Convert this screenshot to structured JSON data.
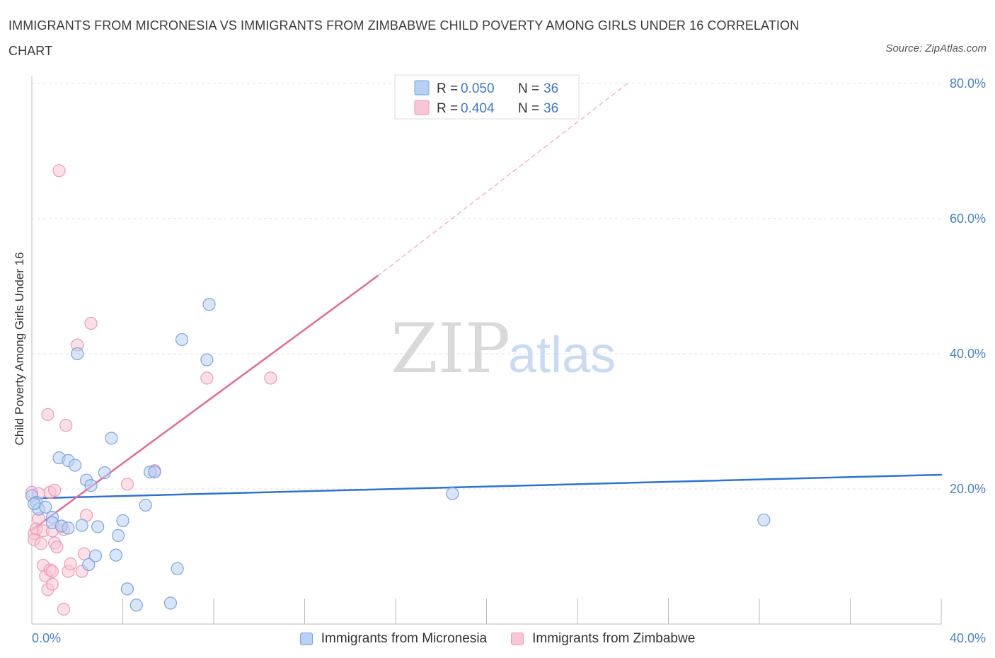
{
  "title": "IMMIGRANTS FROM MICRONESIA VS IMMIGRANTS FROM ZIMBABWE CHILD POVERTY AMONG GIRLS UNDER 16 CORRELATION CHART",
  "source": "Source: ZipAtlas.com",
  "watermark": {
    "zip": "ZIP",
    "atlas": "atlas"
  },
  "colors": {
    "micronesia_fill": "#b8d0f5",
    "micronesia_stroke": "#7aa5e0",
    "micronesia_line": "#2f73cf",
    "zimbabwe_fill": "#f8c6d6",
    "zimbabwe_stroke": "#ee9ab6",
    "zimbabwe_line": "#e56a95",
    "grid": "#e2e2e2",
    "tick_text": "#4a7fc9"
  },
  "legend": {
    "r_label": "R =",
    "n_label": "N =",
    "micronesia": {
      "r": "0.050",
      "n": "36"
    },
    "zimbabwe": {
      "r": "0.404",
      "n": "36"
    }
  },
  "chart_data": {
    "type": "scatter",
    "title": "IMMIGRANTS FROM MICRONESIA VS IMMIGRANTS FROM ZIMBABWE CHILD POVERTY AMONG GIRLS UNDER 16 CORRELATION CHART",
    "xlabel": "",
    "ylabel": "Child Poverty Among Girls Under 16",
    "xlim": [
      0,
      40
    ],
    "ylim": [
      0,
      80
    ],
    "x_tick_labels": [
      "0.0%",
      "40.0%"
    ],
    "y_ticks": [
      20,
      40,
      60,
      80
    ],
    "y_tick_labels": [
      "20.0%",
      "40.0%",
      "60.0%",
      "80.0%"
    ],
    "grid": true,
    "legend_position": "top-center",
    "series": [
      {
        "name": "Immigrants from Micronesia",
        "points": [
          [
            0.0,
            19.0
          ],
          [
            0.2,
            18.0
          ],
          [
            0.3,
            17.0
          ],
          [
            0.6,
            17.3
          ],
          [
            0.9,
            15.8
          ],
          [
            0.9,
            15.0
          ],
          [
            1.2,
            24.6
          ],
          [
            1.3,
            14.5
          ],
          [
            1.6,
            24.2
          ],
          [
            1.6,
            14.2
          ],
          [
            1.9,
            23.5
          ],
          [
            2.0,
            40.0
          ],
          [
            2.2,
            14.6
          ],
          [
            2.4,
            21.3
          ],
          [
            2.5,
            8.8
          ],
          [
            2.6,
            20.5
          ],
          [
            2.8,
            10.1
          ],
          [
            2.9,
            14.4
          ],
          [
            3.2,
            22.4
          ],
          [
            3.5,
            27.5
          ],
          [
            3.7,
            10.2
          ],
          [
            3.8,
            13.1
          ],
          [
            4.0,
            15.3
          ],
          [
            4.2,
            5.2
          ],
          [
            4.6,
            2.8
          ],
          [
            5.0,
            17.6
          ],
          [
            5.2,
            22.5
          ],
          [
            5.4,
            22.5
          ],
          [
            6.1,
            3.1
          ],
          [
            6.4,
            8.2
          ],
          [
            6.6,
            42.1
          ],
          [
            7.7,
            39.1
          ],
          [
            7.8,
            47.3
          ],
          [
            18.5,
            19.3
          ],
          [
            32.2,
            15.4
          ],
          [
            0.1,
            17.8
          ]
        ]
      },
      {
        "name": "Immigrants from Zimbabwe",
        "points": [
          [
            0.0,
            19.5
          ],
          [
            0.1,
            13.4
          ],
          [
            0.1,
            12.5
          ],
          [
            0.2,
            14.1
          ],
          [
            0.3,
            15.6
          ],
          [
            0.4,
            11.9
          ],
          [
            0.5,
            8.7
          ],
          [
            0.5,
            13.8
          ],
          [
            0.6,
            7.1
          ],
          [
            0.7,
            5.1
          ],
          [
            0.7,
            31.0
          ],
          [
            0.8,
            19.5
          ],
          [
            0.8,
            8.0
          ],
          [
            0.9,
            5.9
          ],
          [
            0.9,
            13.8
          ],
          [
            1.0,
            12.0
          ],
          [
            1.0,
            19.8
          ],
          [
            1.1,
            11.4
          ],
          [
            1.2,
            67.1
          ],
          [
            1.4,
            2.2
          ],
          [
            1.4,
            14.0
          ],
          [
            1.5,
            29.4
          ],
          [
            1.6,
            7.8
          ],
          [
            1.7,
            8.9
          ],
          [
            2.0,
            41.3
          ],
          [
            2.2,
            7.8
          ],
          [
            2.3,
            10.4
          ],
          [
            2.4,
            16.1
          ],
          [
            2.6,
            44.5
          ],
          [
            4.2,
            20.7
          ],
          [
            5.4,
            22.7
          ],
          [
            7.7,
            36.4
          ],
          [
            10.5,
            36.4
          ],
          [
            0.9,
            7.8
          ],
          [
            0.3,
            19.3
          ],
          [
            1.3,
            14.5
          ]
        ]
      }
    ],
    "trendlines": [
      {
        "series": "Immigrants from Micronesia",
        "x": [
          0,
          40
        ],
        "y": [
          18.6,
          22.1
        ],
        "style": "solid"
      },
      {
        "series": "Immigrants from Zimbabwe",
        "x": [
          0,
          15.2
        ],
        "y": [
          13.9,
          51.5
        ],
        "style": "solid"
      },
      {
        "series": "Immigrants from Zimbabwe",
        "x": [
          15.2,
          26.2
        ],
        "y": [
          51.5,
          80.0
        ],
        "style": "dashed"
      }
    ]
  }
}
